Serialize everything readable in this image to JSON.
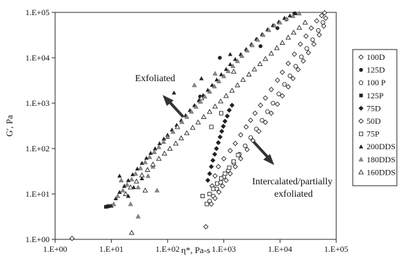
{
  "chart_data": {
    "type": "scatter",
    "x_scale": "log",
    "y_scale": "log",
    "xlim": [
      1,
      100000
    ],
    "ylim": [
      1,
      100000
    ],
    "xlabel": "η*, Pa-s",
    "ylabel": "G', Pa",
    "x_ticks": [
      "1.E+00",
      "1.E+01",
      "1.E+02",
      "1.E+03",
      "1.E+04",
      "1.E+05"
    ],
    "y_ticks": [
      "1.E+00",
      "1.E+01",
      "1.E+02",
      "1.E+03",
      "1.E+04",
      "1.E+05"
    ],
    "x_tick_values": [
      1,
      10,
      100,
      1000,
      10000,
      100000
    ],
    "y_tick_values": [
      1,
      10,
      100,
      1000,
      10000,
      100000
    ],
    "grid": false,
    "legend_position": "right",
    "annotations": [
      {
        "text": "Exfoliated",
        "arrow": "up-left"
      },
      {
        "text": "Intercalated/partially",
        "arrow": "down-right"
      },
      {
        "text": "exfoliated"
      }
    ],
    "series": [
      {
        "name": "100D",
        "marker": "diamond-open",
        "points": [
          [
            620,
            15
          ],
          [
            700,
            25
          ],
          [
            800,
            40
          ],
          [
            1000,
            60
          ],
          [
            1300,
            90
          ],
          [
            1600,
            130
          ],
          [
            2000,
            200
          ],
          [
            2500,
            300
          ],
          [
            3000,
            420
          ],
          [
            3600,
            600
          ],
          [
            4500,
            900
          ],
          [
            5500,
            1300
          ],
          [
            7000,
            2000
          ],
          [
            9000,
            3200
          ],
          [
            11000,
            4800
          ],
          [
            14000,
            7500
          ],
          [
            18000,
            12000
          ],
          [
            23000,
            20000
          ],
          [
            29000,
            30000
          ],
          [
            36000,
            45000
          ],
          [
            45000,
            65000
          ],
          [
            55000,
            85000
          ],
          [
            62000,
            98000
          ]
        ]
      },
      {
        "name": "125D",
        "marker": "circle-filled",
        "points": [
          [
            850,
            10000
          ],
          [
            4500,
            18000
          ],
          [
            9000,
            45000
          ],
          [
            13000,
            70000
          ],
          [
            18000,
            95000
          ],
          [
            380,
            1400
          ]
        ]
      },
      {
        "name": "100 P",
        "marker": "circle-open",
        "points": [
          [
            560,
            7
          ],
          [
            650,
            9
          ],
          [
            750,
            13
          ],
          [
            880,
            18
          ],
          [
            1000,
            24
          ],
          [
            1200,
            33
          ],
          [
            1500,
            48
          ],
          [
            1900,
            75
          ],
          [
            2400,
            115
          ],
          [
            3000,
            175
          ],
          [
            3800,
            270
          ],
          [
            4800,
            420
          ],
          [
            6000,
            650
          ],
          [
            7500,
            1000
          ],
          [
            9500,
            1600
          ],
          [
            12000,
            2600
          ],
          [
            15000,
            4000
          ],
          [
            19000,
            6500
          ],
          [
            24000,
            10500
          ],
          [
            30000,
            16000
          ],
          [
            38000,
            25000
          ],
          [
            48000,
            40000
          ],
          [
            58000,
            60000
          ]
        ]
      },
      {
        "name": "125P",
        "marker": "square-filled",
        "points": [
          [
            8,
            5.2
          ],
          [
            9,
            5.4
          ],
          [
            8.5,
            5.3
          ]
        ]
      },
      {
        "name": "75D",
        "marker": "diamond-filled",
        "points": [
          [
            520,
            20
          ],
          [
            560,
            28
          ],
          [
            600,
            40
          ],
          [
            640,
            55
          ],
          [
            690,
            75
          ],
          [
            740,
            100
          ],
          [
            800,
            135
          ],
          [
            860,
            180
          ],
          [
            920,
            240
          ],
          [
            980,
            310
          ],
          [
            1050,
            400
          ],
          [
            1150,
            520
          ],
          [
            1250,
            700
          ],
          [
            1400,
            900
          ]
        ]
      },
      {
        "name": "50D",
        "marker": "diamond-open",
        "points": [
          [
            2,
            1.05
          ],
          [
            480,
            1.9
          ],
          [
            600,
            6
          ],
          [
            700,
            8
          ],
          [
            820,
            11
          ],
          [
            950,
            15
          ],
          [
            1100,
            20
          ],
          [
            1300,
            28
          ],
          [
            1600,
            40
          ],
          [
            2000,
            60
          ],
          [
            2600,
            95
          ],
          [
            3300,
            150
          ],
          [
            4200,
            240
          ],
          [
            5500,
            380
          ],
          [
            7000,
            600
          ],
          [
            9000,
            950
          ],
          [
            11000,
            1450
          ],
          [
            14000,
            2300
          ],
          [
            17000,
            3500
          ],
          [
            21000,
            5500
          ],
          [
            26000,
            8500
          ],
          [
            32000,
            13000
          ],
          [
            40000,
            20000
          ],
          [
            50000,
            32000
          ],
          [
            60000,
            50000
          ],
          [
            65000,
            75000
          ]
        ]
      },
      {
        "name": "75P",
        "marker": "square-open",
        "points": [
          [
            420,
            9
          ],
          [
            500,
            6
          ],
          [
            560,
            10
          ],
          [
            650,
            13
          ],
          [
            760,
            17
          ],
          [
            900,
            22
          ],
          [
            1050,
            28
          ],
          [
            1250,
            38
          ],
          [
            1500,
            52
          ],
          [
            1800,
            72
          ],
          [
            600,
            300
          ],
          [
            900,
            600
          ]
        ]
      },
      {
        "name": "200DDS",
        "marker": "triangle-filled",
        "points": [
          [
            10,
            5.5
          ],
          [
            12,
            8
          ],
          [
            14,
            11
          ],
          [
            17,
            15
          ],
          [
            20,
            20
          ],
          [
            24,
            27
          ],
          [
            29,
            36
          ],
          [
            35,
            48
          ],
          [
            42,
            62
          ],
          [
            50,
            80
          ],
          [
            60,
            100
          ],
          [
            72,
            130
          ],
          [
            86,
            165
          ],
          [
            100,
            200
          ],
          [
            120,
            260
          ],
          [
            145,
            330
          ],
          [
            175,
            420
          ],
          [
            210,
            540
          ],
          [
            250,
            700
          ],
          [
            300,
            900
          ],
          [
            360,
            1150
          ],
          [
            430,
            1500
          ],
          [
            520,
            1950
          ],
          [
            620,
            2500
          ],
          [
            750,
            3300
          ],
          [
            900,
            4300
          ],
          [
            1100,
            5600
          ],
          [
            1300,
            7200
          ],
          [
            1600,
            9300
          ],
          [
            2000,
            12000
          ],
          [
            2500,
            15500
          ],
          [
            3100,
            20000
          ],
          [
            3800,
            26000
          ],
          [
            4800,
            33000
          ],
          [
            6000,
            42000
          ],
          [
            7500,
            52000
          ],
          [
            9500,
            62000
          ],
          [
            12000,
            75000
          ],
          [
            15000,
            85000
          ],
          [
            19000,
            95000
          ],
          [
            14,
            25
          ],
          [
            20,
            9
          ],
          [
            25,
            14
          ],
          [
            35,
            22
          ],
          [
            130,
            1700
          ],
          [
            400,
            3500
          ],
          [
            1300,
            12000
          ]
        ]
      },
      {
        "name": "180DDS",
        "marker": "triangle-gray",
        "points": [
          [
            11,
            6
          ],
          [
            13,
            9
          ],
          [
            16,
            12
          ],
          [
            19,
            16
          ],
          [
            23,
            21
          ],
          [
            27,
            28
          ],
          [
            33,
            37
          ],
          [
            40,
            50
          ],
          [
            48,
            65
          ],
          [
            58,
            84
          ],
          [
            70,
            108
          ],
          [
            85,
            140
          ],
          [
            100,
            180
          ],
          [
            125,
            235
          ],
          [
            150,
            300
          ],
          [
            180,
            385
          ],
          [
            220,
            500
          ],
          [
            265,
            650
          ],
          [
            320,
            840
          ],
          [
            385,
            1080
          ],
          [
            460,
            1400
          ],
          [
            560,
            1800
          ],
          [
            680,
            2350
          ],
          [
            820,
            3050
          ],
          [
            1000,
            3950
          ],
          [
            1200,
            5100
          ],
          [
            1450,
            6600
          ],
          [
            1750,
            8500
          ],
          [
            2100,
            11000
          ],
          [
            2600,
            14500
          ],
          [
            3200,
            19000
          ],
          [
            4000,
            25000
          ],
          [
            5000,
            32000
          ],
          [
            6300,
            41000
          ],
          [
            8000,
            51000
          ],
          [
            10000,
            60000
          ],
          [
            13000,
            72000
          ],
          [
            17000,
            83000
          ],
          [
            22000,
            95000
          ],
          [
            15,
            20
          ],
          [
            22,
            6
          ],
          [
            30,
            14
          ],
          [
            45,
            25
          ],
          [
            55,
            40
          ],
          [
            65,
            12
          ],
          [
            30,
            3.2
          ],
          [
            300,
            2500
          ],
          [
            700,
            4500
          ]
        ]
      },
      {
        "name": "160DDS",
        "marker": "triangle-open",
        "points": [
          [
            18,
            10
          ],
          [
            22,
            14
          ],
          [
            28,
            19
          ],
          [
            35,
            26
          ],
          [
            44,
            34
          ],
          [
            55,
            45
          ],
          [
            70,
            60
          ],
          [
            88,
            78
          ],
          [
            110,
            100
          ],
          [
            140,
            130
          ],
          [
            175,
            170
          ],
          [
            220,
            220
          ],
          [
            280,
            290
          ],
          [
            350,
            380
          ],
          [
            440,
            500
          ],
          [
            560,
            650
          ],
          [
            700,
            850
          ],
          [
            880,
            1100
          ],
          [
            1100,
            1450
          ],
          [
            1400,
            1900
          ],
          [
            1750,
            2500
          ],
          [
            2200,
            3300
          ],
          [
            2800,
            4300
          ],
          [
            3500,
            5600
          ],
          [
            4400,
            7300
          ],
          [
            5500,
            9500
          ],
          [
            7000,
            12500
          ],
          [
            8800,
            16500
          ],
          [
            11000,
            21500
          ],
          [
            14000,
            28000
          ],
          [
            17500,
            36000
          ],
          [
            22000,
            46000
          ],
          [
            28000,
            60000
          ],
          [
            23,
            1.4
          ],
          [
            40,
            12
          ],
          [
            150,
            300
          ],
          [
            400,
            1300
          ],
          [
            1500,
            5000
          ]
        ]
      }
    ]
  }
}
